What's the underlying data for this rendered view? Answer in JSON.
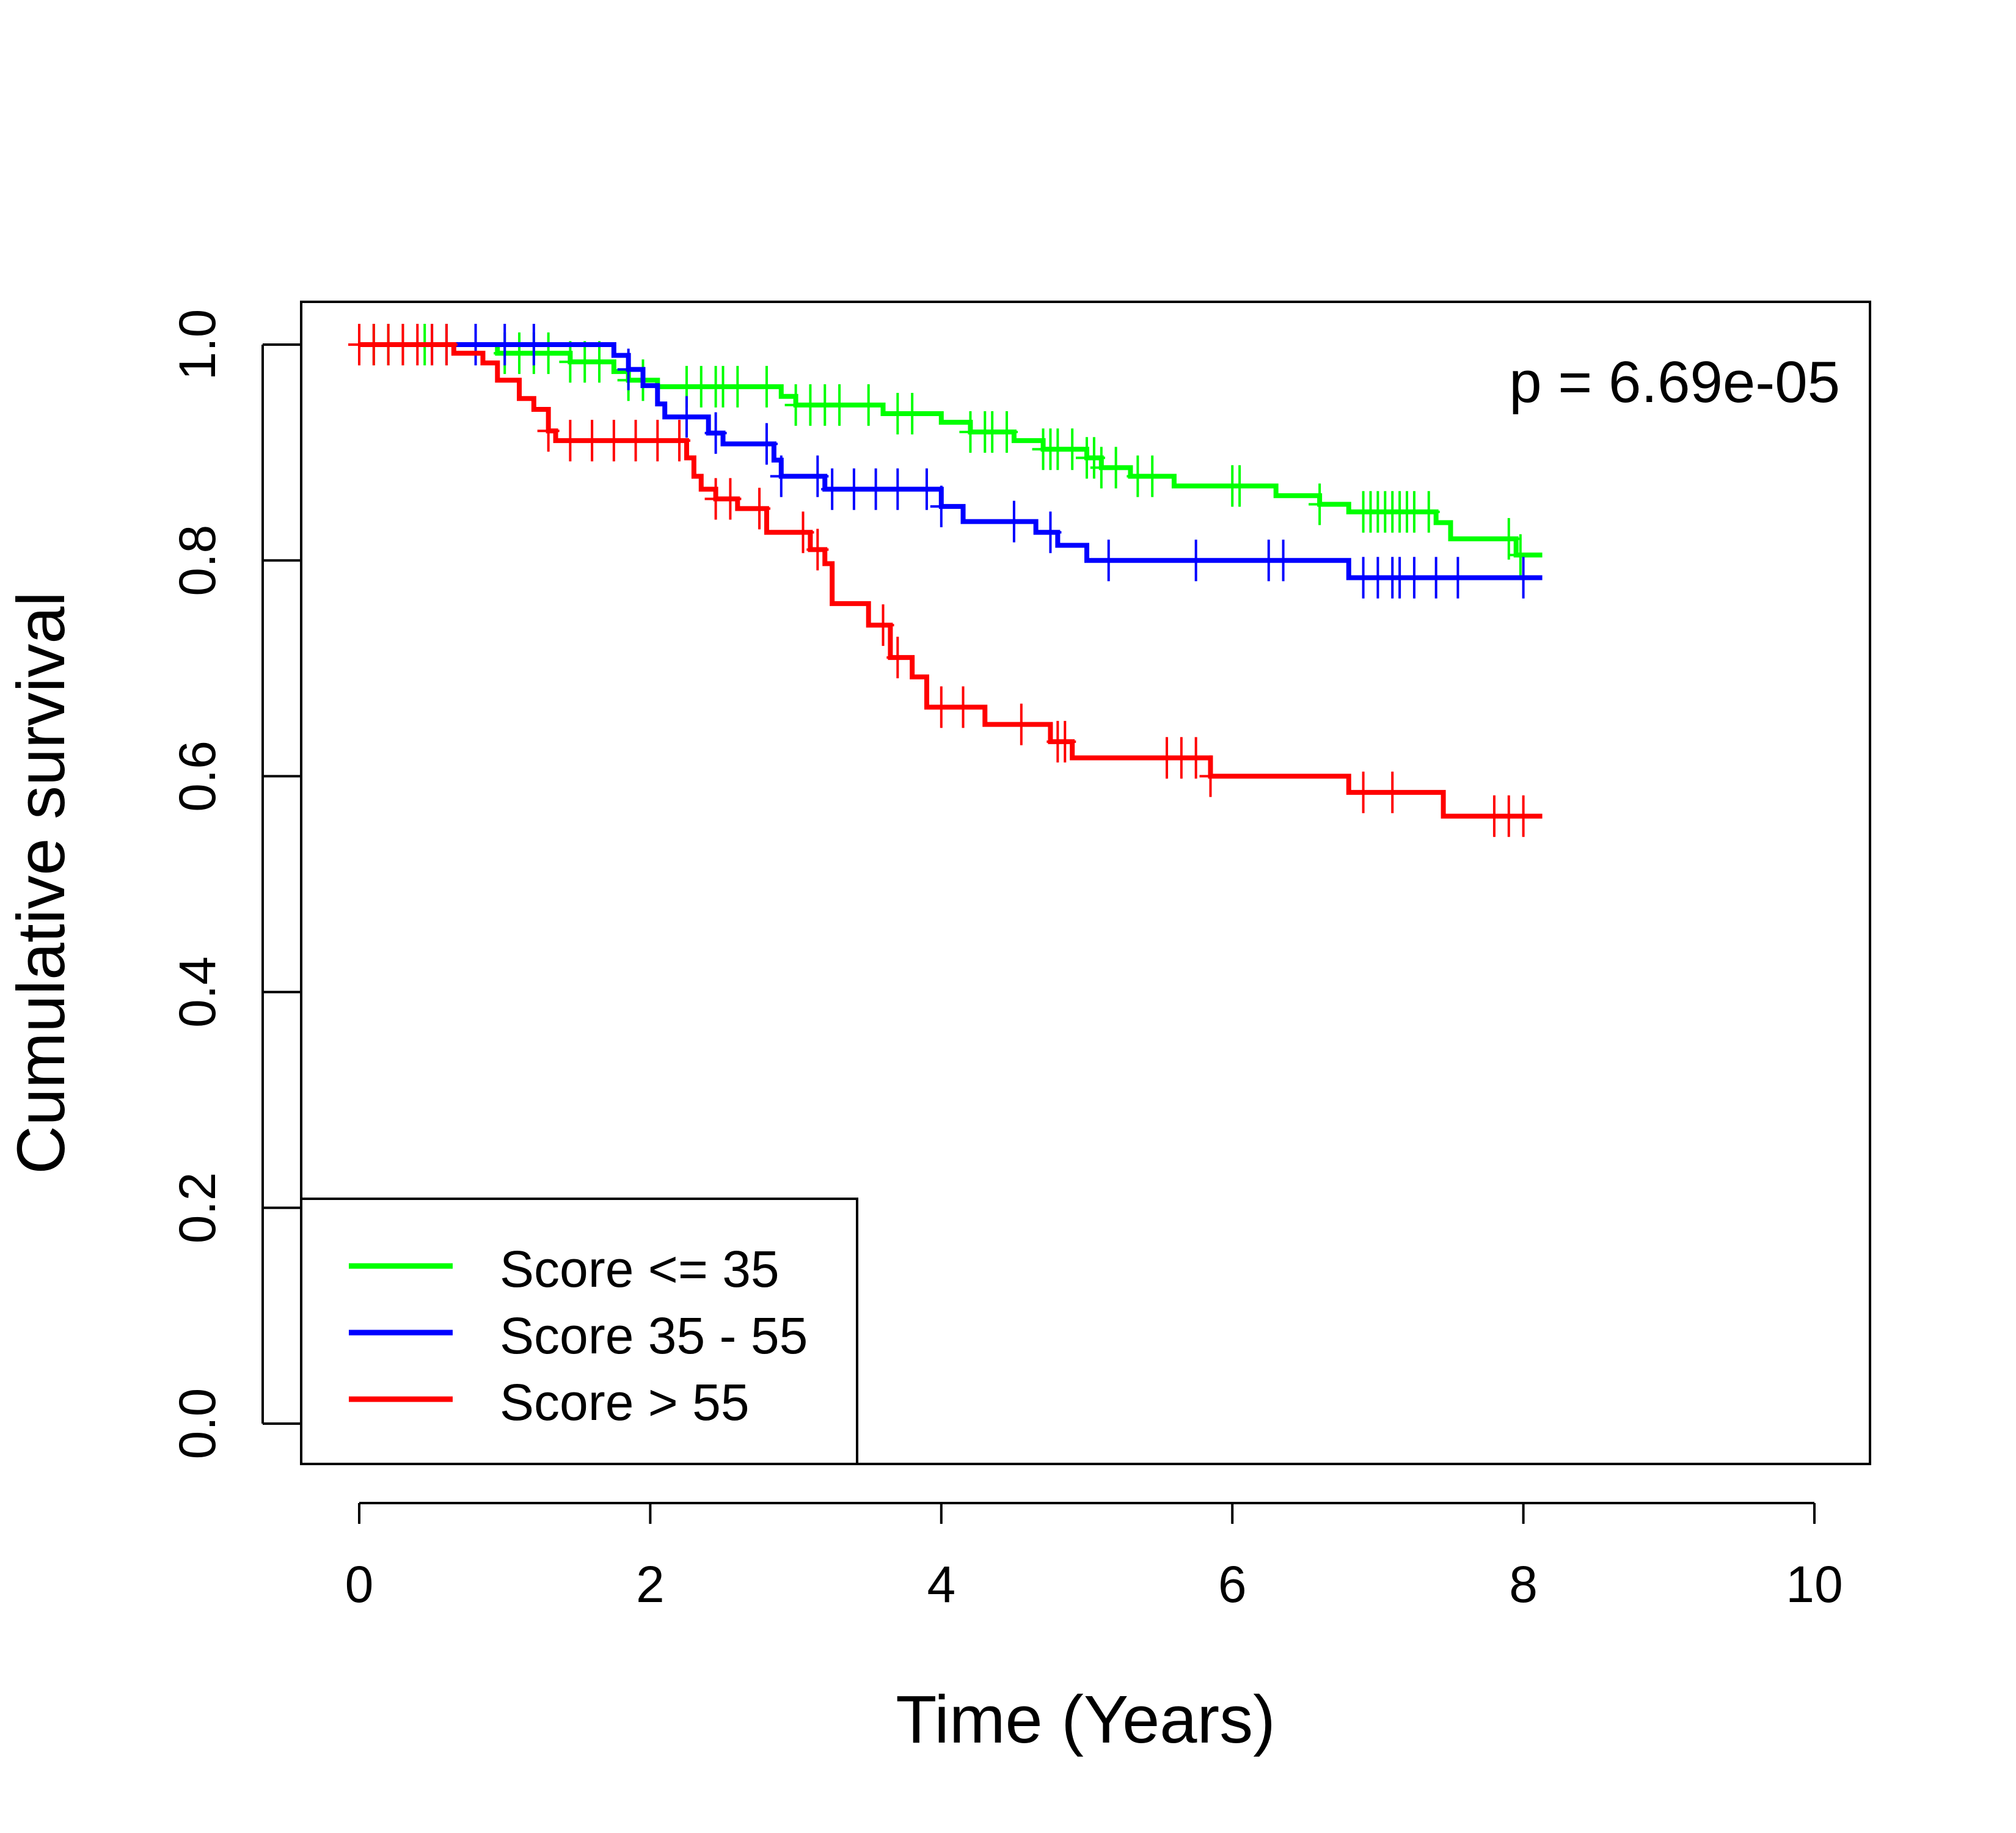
{
  "chart_data": {
    "type": "line",
    "step": true,
    "annotation": "p = 6.69e-05",
    "xlabel": "Time (Years)",
    "ylabel": "Cumulative survival",
    "xlim": [
      0,
      10
    ],
    "ylim": [
      0,
      1
    ],
    "x_ticks": [
      0,
      2,
      4,
      6,
      8,
      10
    ],
    "y_ticks": [
      0,
      0.2,
      0.4,
      0.6,
      0.8,
      1
    ],
    "x_tick_labels": [
      "0",
      "2",
      "4",
      "6",
      "8",
      "10"
    ],
    "y_tick_labels": [
      "0.0",
      "0.2",
      "0.4",
      "0.6",
      "0.8",
      "1.0"
    ],
    "grid": false,
    "legend_position": "bottom-left",
    "series": [
      {
        "name": "Score <= 35",
        "color": "#00ff00",
        "steps": [
          [
            0,
            1.0
          ],
          [
            0.95,
            0.992
          ],
          [
            1.45,
            0.984
          ],
          [
            1.75,
            0.975
          ],
          [
            1.85,
            0.967
          ],
          [
            2.05,
            0.961
          ],
          [
            2.9,
            0.952
          ],
          [
            3.0,
            0.944
          ],
          [
            3.6,
            0.936
          ],
          [
            4.0,
            0.928
          ],
          [
            4.2,
            0.919
          ],
          [
            4.5,
            0.911
          ],
          [
            4.7,
            0.903
          ],
          [
            5.0,
            0.895
          ],
          [
            5.1,
            0.886
          ],
          [
            5.3,
            0.878
          ],
          [
            5.6,
            0.869
          ],
          [
            6.3,
            0.86
          ],
          [
            6.6,
            0.852
          ],
          [
            6.8,
            0.845
          ],
          [
            7.4,
            0.835
          ],
          [
            7.5,
            0.82
          ],
          [
            7.95,
            0.805
          ],
          [
            8.13,
            0.805
          ]
        ],
        "censor_x": [
          0.1,
          0.2,
          0.3,
          0.45,
          0.6,
          1.0,
          1.1,
          1.2,
          1.3,
          1.45,
          1.55,
          1.65,
          1.85,
          1.95,
          2.25,
          2.35,
          2.45,
          2.5,
          2.6,
          2.8,
          3.0,
          3.1,
          3.2,
          3.3,
          3.5,
          3.7,
          3.8,
          4.2,
          4.3,
          4.35,
          4.45,
          4.7,
          4.75,
          4.8,
          4.9,
          5.0,
          5.05,
          5.1,
          5.2,
          5.35,
          5.45,
          6.0,
          6.05,
          6.6,
          6.9,
          6.95,
          7.0,
          7.05,
          7.1,
          7.15,
          7.2,
          7.25,
          7.35,
          7.9,
          7.98
        ]
      },
      {
        "name": "Score 35 - 55",
        "color": "#0000ff",
        "steps": [
          [
            0,
            1.0
          ],
          [
            1.75,
            0.99
          ],
          [
            1.85,
            0.977
          ],
          [
            1.95,
            0.962
          ],
          [
            2.05,
            0.945
          ],
          [
            2.1,
            0.933
          ],
          [
            2.4,
            0.918
          ],
          [
            2.5,
            0.908
          ],
          [
            2.85,
            0.893
          ],
          [
            2.9,
            0.878
          ],
          [
            3.2,
            0.866
          ],
          [
            4.0,
            0.85
          ],
          [
            4.15,
            0.836
          ],
          [
            4.65,
            0.826
          ],
          [
            4.8,
            0.814
          ],
          [
            5.0,
            0.8
          ],
          [
            6.8,
            0.784
          ],
          [
            8.13,
            0.784
          ]
        ],
        "censor_x": [
          0.5,
          0.6,
          0.8,
          1.0,
          1.2,
          1.85,
          2.25,
          2.45,
          2.8,
          2.9,
          3.15,
          3.25,
          3.4,
          3.55,
          3.7,
          3.9,
          4.0,
          4.5,
          4.75,
          5.15,
          5.75,
          6.25,
          6.35,
          6.9,
          7.0,
          7.1,
          7.15,
          7.25,
          7.4,
          7.55,
          8.0
        ]
      },
      {
        "name": "Score > 55",
        "color": "#ff0000",
        "steps": [
          [
            0,
            1.0
          ],
          [
            0.65,
            0.992
          ],
          [
            0.85,
            0.983
          ],
          [
            0.95,
            0.967
          ],
          [
            1.1,
            0.95
          ],
          [
            1.2,
            0.94
          ],
          [
            1.3,
            0.92
          ],
          [
            1.35,
            0.911
          ],
          [
            2.25,
            0.895
          ],
          [
            2.3,
            0.878
          ],
          [
            2.35,
            0.866
          ],
          [
            2.45,
            0.857
          ],
          [
            2.6,
            0.848
          ],
          [
            2.8,
            0.826
          ],
          [
            3.1,
            0.81
          ],
          [
            3.2,
            0.797
          ],
          [
            3.25,
            0.76
          ],
          [
            3.5,
            0.74
          ],
          [
            3.65,
            0.71
          ],
          [
            3.8,
            0.692
          ],
          [
            3.9,
            0.664
          ],
          [
            4.3,
            0.648
          ],
          [
            4.75,
            0.632
          ],
          [
            4.9,
            0.617
          ],
          [
            5.85,
            0.6
          ],
          [
            6.8,
            0.585
          ],
          [
            7.45,
            0.563
          ],
          [
            8.13,
            0.563
          ]
        ],
        "censor_x": [
          0,
          0.1,
          0.2,
          0.3,
          0.4,
          0.5,
          0.6,
          1.3,
          1.45,
          1.6,
          1.75,
          1.9,
          2.05,
          2.2,
          2.45,
          2.55,
          2.75,
          3.05,
          3.15,
          3.6,
          3.7,
          4.0,
          4.15,
          4.55,
          4.8,
          4.85,
          5.55,
          5.65,
          5.75,
          5.85,
          6.9,
          7.1,
          7.8,
          7.9,
          8.0
        ]
      }
    ]
  }
}
